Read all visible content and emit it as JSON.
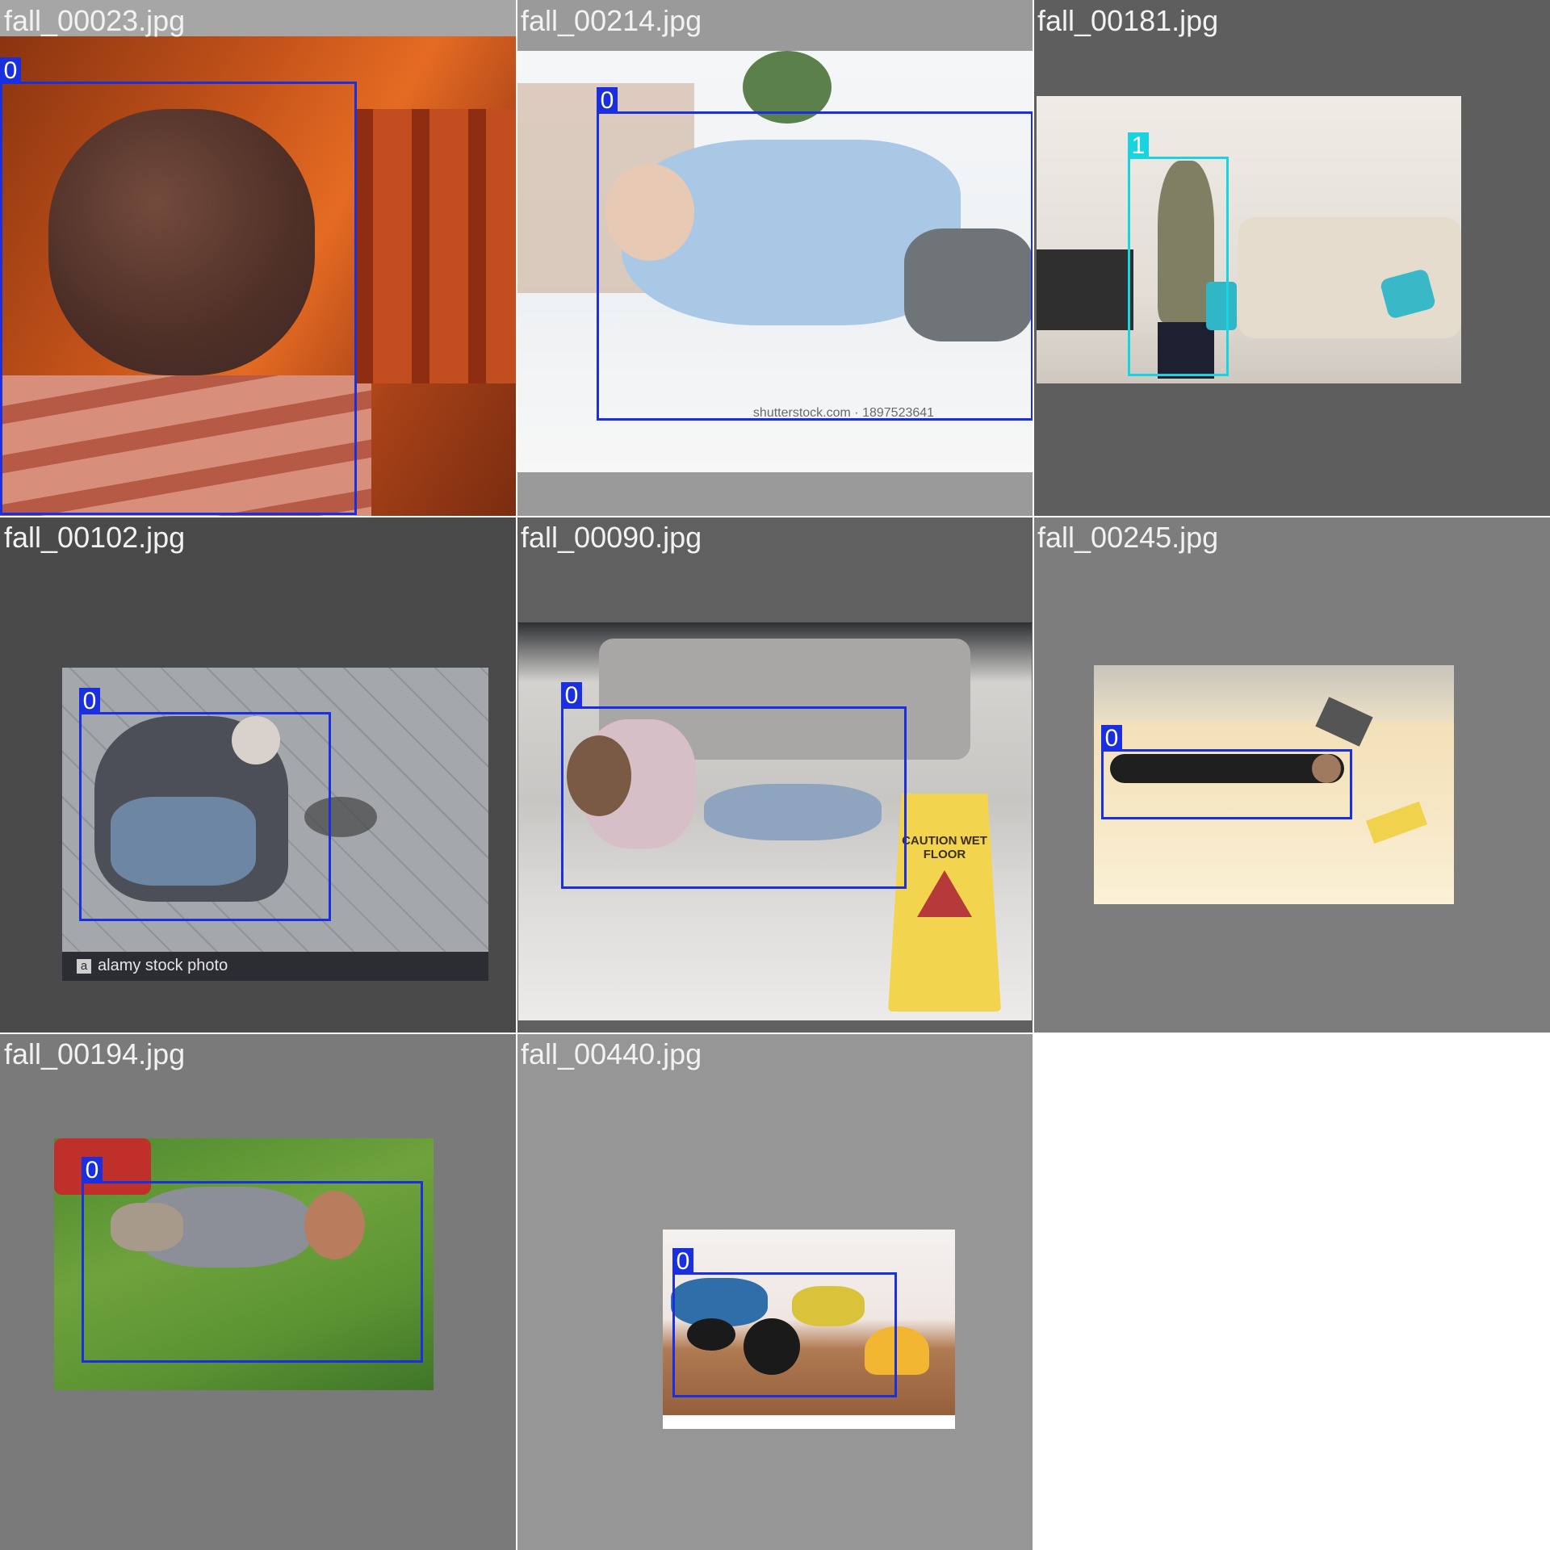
{
  "grid": {
    "tiles": [
      {
        "filename": "fall_00023.jpg",
        "labels": [
          "0"
        ]
      },
      {
        "filename": "fall_00214.jpg",
        "labels": [
          "0"
        ],
        "watermark": "shutterstock.com · 1897523641"
      },
      {
        "filename": "fall_00181.jpg",
        "labels": [
          "1"
        ]
      },
      {
        "filename": "fall_00102.jpg",
        "labels": [
          "0"
        ],
        "watermark": "alamy stock photo"
      },
      {
        "filename": "fall_00090.jpg",
        "labels": [
          "0"
        ],
        "sign_text": "CAUTION WET FLOOR"
      },
      {
        "filename": "fall_00245.jpg",
        "labels": [
          "0"
        ]
      },
      {
        "filename": "fall_00194.jpg",
        "labels": [
          "0"
        ]
      },
      {
        "filename": "fall_00440.jpg",
        "labels": [
          "0"
        ]
      }
    ]
  },
  "colors": {
    "class_0_box": "#1a2fe0",
    "class_1_box": "#18d4e0",
    "tile_backgrounds": [
      "#a6a6a6",
      "#9a9a9a",
      "#5e5e5e",
      "#4a4a4a",
      "#606060",
      "#7d7d7d",
      "#7a7a7a",
      "#969696"
    ]
  }
}
